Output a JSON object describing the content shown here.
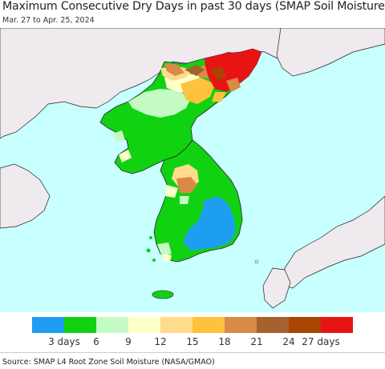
{
  "title": "Maximum Consecutive Dry Days in past 30 days (SMAP Soil Moisture)",
  "subtitle": "Mar. 27 to Apr. 25, 2024",
  "source": "Source: SMAP L4 Root Zone Soil Moisture (NASA/GMAO)",
  "colors": {
    "water": "#c8ffff",
    "land_nodata": "#eeeaee",
    "border": "#222222"
  },
  "legend": {
    "bins": [
      {
        "color": "#1e9ef0"
      },
      {
        "color": "#11d211"
      },
      {
        "color": "#c4fac4"
      },
      {
        "color": "#ffffc8"
      },
      {
        "color": "#ffdc8c"
      },
      {
        "color": "#ffc23c"
      },
      {
        "color": "#d88a46"
      },
      {
        "color": "#a6622e"
      },
      {
        "color": "#a84600"
      },
      {
        "color": "#e81414"
      }
    ],
    "ticks": [
      "3 days",
      "6",
      "9",
      "12",
      "15",
      "18",
      "21",
      "24",
      "27 days"
    ]
  }
}
